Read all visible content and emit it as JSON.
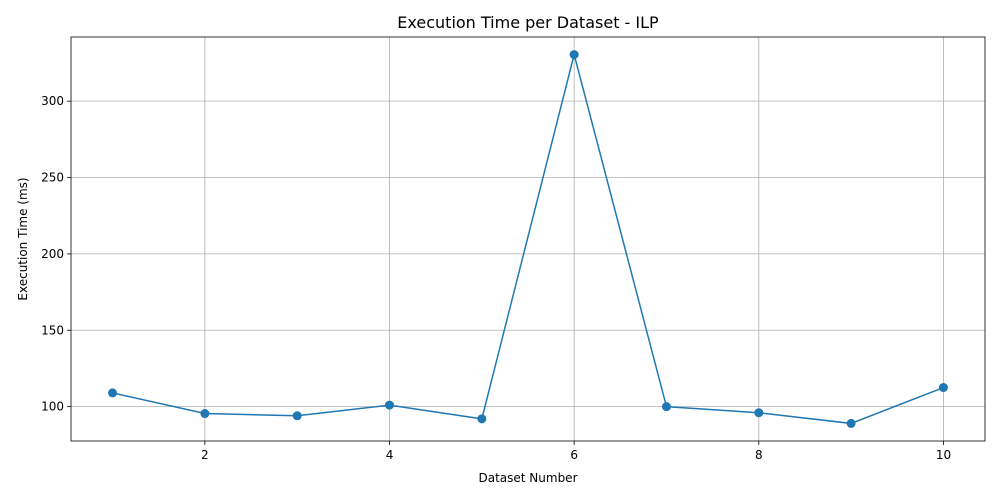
{
  "chart_data": {
    "type": "line",
    "title": "Execution Time per Dataset - ILP",
    "xlabel": "Dataset Number",
    "ylabel": "Execution Time (ms)",
    "x": [
      1,
      2,
      3,
      4,
      5,
      6,
      7,
      8,
      9,
      10
    ],
    "y": [
      109,
      95.5,
      94,
      101,
      92,
      330.5,
      100,
      96,
      89,
      112.5
    ],
    "xlim": [
      0.55,
      10.45
    ],
    "ylim": [
      77.5,
      342
    ],
    "xticks": [
      2,
      4,
      6,
      8,
      10
    ],
    "yticks": [
      100,
      150,
      200,
      250,
      300
    ],
    "grid": true,
    "line_color": "#1f77b4",
    "marker": "circle"
  }
}
